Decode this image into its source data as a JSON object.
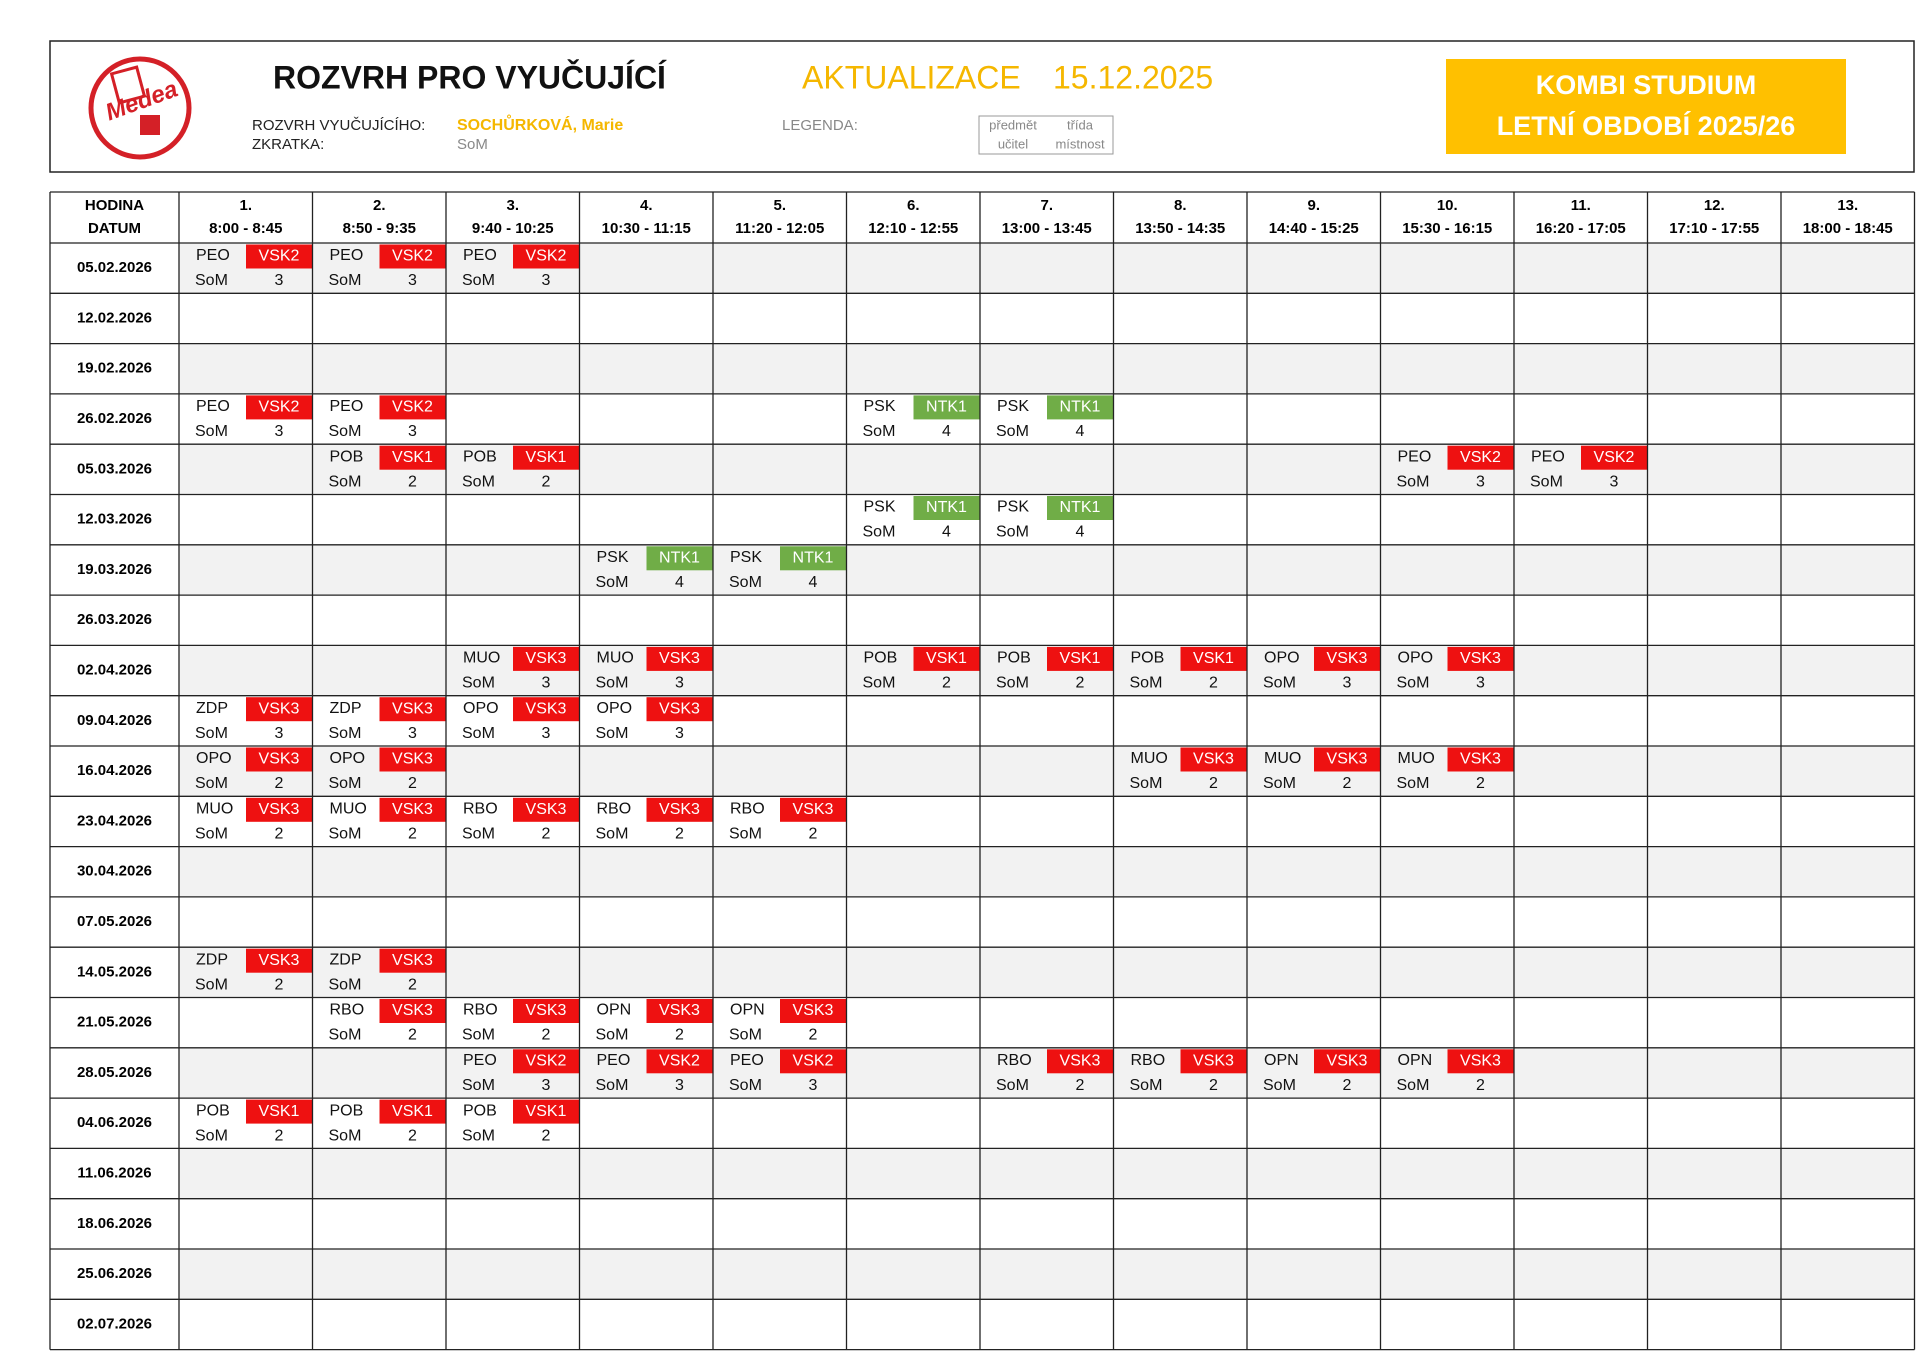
{
  "header": {
    "logo": "Medea",
    "title": "ROZVRH PRO VYUČUJÍCÍ",
    "update_label": "AKTUALIZACE",
    "update_date": "15.12.2025",
    "teacher_label": "ROZVRH VYUČUJÍCÍHO:",
    "teacher_name": "SOCHŮRKOVÁ, Marie",
    "abbr_label": "ZKRATKA:",
    "abbr": "SoM",
    "legend_label": "LEGENDA:",
    "legend": [
      [
        "předmět",
        "třída"
      ],
      [
        "učitel",
        "místnost"
      ]
    ],
    "banner": [
      "KOMBI STUDIUM",
      "LETNÍ OBDOBÍ 2025/26"
    ]
  },
  "table": {
    "corner": [
      "HODINA",
      "DATUM"
    ],
    "periods": [
      {
        "number": "1.",
        "time": "8:00 - 8:45"
      },
      {
        "number": "2.",
        "time": "8:50 - 9:35"
      },
      {
        "number": "3.",
        "time": "9:40 - 10:25"
      },
      {
        "number": "4.",
        "time": "10:30 - 11:15"
      },
      {
        "number": "5.",
        "time": "11:20 - 12:05"
      },
      {
        "number": "6.",
        "time": "12:10 - 12:55"
      },
      {
        "number": "7.",
        "time": "13:00 - 13:45"
      },
      {
        "number": "8.",
        "time": "13:50 - 14:35"
      },
      {
        "number": "9.",
        "time": "14:40 - 15:25"
      },
      {
        "number": "10.",
        "time": "15:30 - 16:15"
      },
      {
        "number": "11.",
        "time": "16:20 - 17:05"
      },
      {
        "number": "12.",
        "time": "17:10 - 17:55"
      },
      {
        "number": "13.",
        "time": "18:00 - 18:45"
      }
    ],
    "room_colors": {
      "VSK1": "#ee1111",
      "VSK2": "#ee1111",
      "VSK3": "#ee1111",
      "NTK1": "#70ad47"
    },
    "rows": [
      {
        "date": "05.02.2026",
        "cells": [
          [
            "PEO",
            "VSK2",
            "SoM",
            "3"
          ],
          [
            "PEO",
            "VSK2",
            "SoM",
            "3"
          ],
          [
            "PEO",
            "VSK2",
            "SoM",
            "3"
          ],
          null,
          null,
          null,
          null,
          null,
          null,
          null,
          null,
          null,
          null
        ]
      },
      {
        "date": "12.02.2026",
        "cells": [
          null,
          null,
          null,
          null,
          null,
          null,
          null,
          null,
          null,
          null,
          null,
          null,
          null
        ]
      },
      {
        "date": "19.02.2026",
        "cells": [
          null,
          null,
          null,
          null,
          null,
          null,
          null,
          null,
          null,
          null,
          null,
          null,
          null
        ]
      },
      {
        "date": "26.02.2026",
        "cells": [
          [
            "PEO",
            "VSK2",
            "SoM",
            "3"
          ],
          [
            "PEO",
            "VSK2",
            "SoM",
            "3"
          ],
          null,
          null,
          null,
          [
            "PSK",
            "NTK1",
            "SoM",
            "4"
          ],
          [
            "PSK",
            "NTK1",
            "SoM",
            "4"
          ],
          null,
          null,
          null,
          null,
          null,
          null
        ]
      },
      {
        "date": "05.03.2026",
        "cells": [
          null,
          [
            "POB",
            "VSK1",
            "SoM",
            "2"
          ],
          [
            "POB",
            "VSK1",
            "SoM",
            "2"
          ],
          null,
          null,
          null,
          null,
          null,
          null,
          [
            "PEO",
            "VSK2",
            "SoM",
            "3"
          ],
          [
            "PEO",
            "VSK2",
            "SoM",
            "3"
          ],
          null,
          null
        ]
      },
      {
        "date": "12.03.2026",
        "cells": [
          null,
          null,
          null,
          null,
          null,
          [
            "PSK",
            "NTK1",
            "SoM",
            "4"
          ],
          [
            "PSK",
            "NTK1",
            "SoM",
            "4"
          ],
          null,
          null,
          null,
          null,
          null,
          null
        ]
      },
      {
        "date": "19.03.2026",
        "cells": [
          null,
          null,
          null,
          [
            "PSK",
            "NTK1",
            "SoM",
            "4"
          ],
          [
            "PSK",
            "NTK1",
            "SoM",
            "4"
          ],
          null,
          null,
          null,
          null,
          null,
          null,
          null,
          null
        ]
      },
      {
        "date": "26.03.2026",
        "cells": [
          null,
          null,
          null,
          null,
          null,
          null,
          null,
          null,
          null,
          null,
          null,
          null,
          null
        ]
      },
      {
        "date": "02.04.2026",
        "cells": [
          null,
          null,
          [
            "MUO",
            "VSK3",
            "SoM",
            "3"
          ],
          [
            "MUO",
            "VSK3",
            "SoM",
            "3"
          ],
          null,
          [
            "POB",
            "VSK1",
            "SoM",
            "2"
          ],
          [
            "POB",
            "VSK1",
            "SoM",
            "2"
          ],
          [
            "POB",
            "VSK1",
            "SoM",
            "2"
          ],
          [
            "OPO",
            "VSK3",
            "SoM",
            "3"
          ],
          [
            "OPO",
            "VSK3",
            "SoM",
            "3"
          ],
          null,
          null,
          null
        ]
      },
      {
        "date": "09.04.2026",
        "cells": [
          [
            "ZDP",
            "VSK3",
            "SoM",
            "3"
          ],
          [
            "ZDP",
            "VSK3",
            "SoM",
            "3"
          ],
          [
            "OPO",
            "VSK3",
            "SoM",
            "3"
          ],
          [
            "OPO",
            "VSK3",
            "SoM",
            "3"
          ],
          null,
          null,
          null,
          null,
          null,
          null,
          null,
          null,
          null
        ]
      },
      {
        "date": "16.04.2026",
        "cells": [
          [
            "OPO",
            "VSK3",
            "SoM",
            "2"
          ],
          [
            "OPO",
            "VSK3",
            "SoM",
            "2"
          ],
          null,
          null,
          null,
          null,
          null,
          [
            "MUO",
            "VSK3",
            "SoM",
            "2"
          ],
          [
            "MUO",
            "VSK3",
            "SoM",
            "2"
          ],
          [
            "MUO",
            "VSK3",
            "SoM",
            "2"
          ],
          null,
          null,
          null
        ]
      },
      {
        "date": "23.04.2026",
        "cells": [
          [
            "MUO",
            "VSK3",
            "SoM",
            "2"
          ],
          [
            "MUO",
            "VSK3",
            "SoM",
            "2"
          ],
          [
            "RBO",
            "VSK3",
            "SoM",
            "2"
          ],
          [
            "RBO",
            "VSK3",
            "SoM",
            "2"
          ],
          [
            "RBO",
            "VSK3",
            "SoM",
            "2"
          ],
          null,
          null,
          null,
          null,
          null,
          null,
          null,
          null
        ]
      },
      {
        "date": "30.04.2026",
        "cells": [
          null,
          null,
          null,
          null,
          null,
          null,
          null,
          null,
          null,
          null,
          null,
          null,
          null
        ]
      },
      {
        "date": "07.05.2026",
        "cells": [
          null,
          null,
          null,
          null,
          null,
          null,
          null,
          null,
          null,
          null,
          null,
          null,
          null
        ]
      },
      {
        "date": "14.05.2026",
        "cells": [
          [
            "ZDP",
            "VSK3",
            "SoM",
            "2"
          ],
          [
            "ZDP",
            "VSK3",
            "SoM",
            "2"
          ],
          null,
          null,
          null,
          null,
          null,
          null,
          null,
          null,
          null,
          null,
          null
        ]
      },
      {
        "date": "21.05.2026",
        "cells": [
          null,
          [
            "RBO",
            "VSK3",
            "SoM",
            "2"
          ],
          [
            "RBO",
            "VSK3",
            "SoM",
            "2"
          ],
          [
            "OPN",
            "VSK3",
            "SoM",
            "2"
          ],
          [
            "OPN",
            "VSK3",
            "SoM",
            "2"
          ],
          null,
          null,
          null,
          null,
          null,
          null,
          null,
          null
        ]
      },
      {
        "date": "28.05.2026",
        "cells": [
          null,
          null,
          [
            "PEO",
            "VSK2",
            "SoM",
            "3"
          ],
          [
            "PEO",
            "VSK2",
            "SoM",
            "3"
          ],
          [
            "PEO",
            "VSK2",
            "SoM",
            "3"
          ],
          null,
          [
            "RBO",
            "VSK3",
            "SoM",
            "2"
          ],
          [
            "RBO",
            "VSK3",
            "SoM",
            "2"
          ],
          [
            "OPN",
            "VSK3",
            "SoM",
            "2"
          ],
          [
            "OPN",
            "VSK3",
            "SoM",
            "2"
          ],
          null,
          null,
          null
        ]
      },
      {
        "date": "04.06.2026",
        "cells": [
          [
            "POB",
            "VSK1",
            "SoM",
            "2"
          ],
          [
            "POB",
            "VSK1",
            "SoM",
            "2"
          ],
          [
            "POB",
            "VSK1",
            "SoM",
            "2"
          ],
          null,
          null,
          null,
          null,
          null,
          null,
          null,
          null,
          null,
          null
        ]
      },
      {
        "date": "11.06.2026",
        "cells": [
          null,
          null,
          null,
          null,
          null,
          null,
          null,
          null,
          null,
          null,
          null,
          null,
          null
        ]
      },
      {
        "date": "18.06.2026",
        "cells": [
          null,
          null,
          null,
          null,
          null,
          null,
          null,
          null,
          null,
          null,
          null,
          null,
          null
        ]
      },
      {
        "date": "25.06.2026",
        "cells": [
          null,
          null,
          null,
          null,
          null,
          null,
          null,
          null,
          null,
          null,
          null,
          null,
          null
        ]
      },
      {
        "date": "02.07.2026",
        "cells": [
          null,
          null,
          null,
          null,
          null,
          null,
          null,
          null,
          null,
          null,
          null,
          null,
          null
        ]
      }
    ]
  }
}
